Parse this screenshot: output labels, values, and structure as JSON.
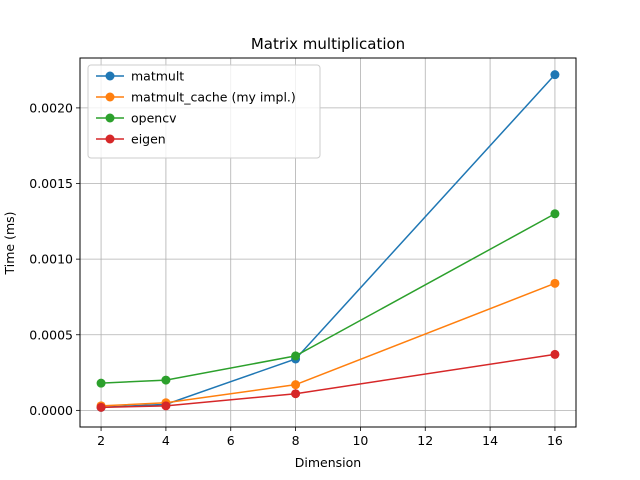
{
  "chart_data": {
    "type": "line",
    "title": "Matrix multiplication",
    "xlabel": "Dimension",
    "ylabel": "Time (ms)",
    "x": [
      2,
      4,
      8,
      16
    ],
    "xlim": [
      1.35,
      16.65
    ],
    "ylim": [
      -0.00011,
      0.00233
    ],
    "xticks": [
      2,
      4,
      6,
      8,
      10,
      12,
      14,
      16
    ],
    "xtick_labels": [
      "2",
      "4",
      "6",
      "8",
      "10",
      "12",
      "14",
      "16"
    ],
    "yticks": [
      0,
      0.0005,
      0.001,
      0.0015,
      0.002
    ],
    "ytick_labels": [
      "0.0000",
      "0.0005",
      "0.0010",
      "0.0015",
      "0.0020"
    ],
    "grid": true,
    "legend_position": "top-left",
    "series": [
      {
        "name": "matmult",
        "color": "#1f77b4",
        "values": [
          2e-05,
          4e-05,
          0.00034,
          0.00222
        ]
      },
      {
        "name": "matmult_cache (my impl.)",
        "color": "#ff7f0e",
        "values": [
          3e-05,
          5e-05,
          0.00017,
          0.00084
        ]
      },
      {
        "name": "opencv",
        "color": "#2ca02c",
        "values": [
          0.00018,
          0.0002,
          0.00036,
          0.0013
        ]
      },
      {
        "name": "eigen",
        "color": "#d62728",
        "values": [
          2e-05,
          3e-05,
          0.00011,
          0.00037
        ]
      }
    ]
  }
}
